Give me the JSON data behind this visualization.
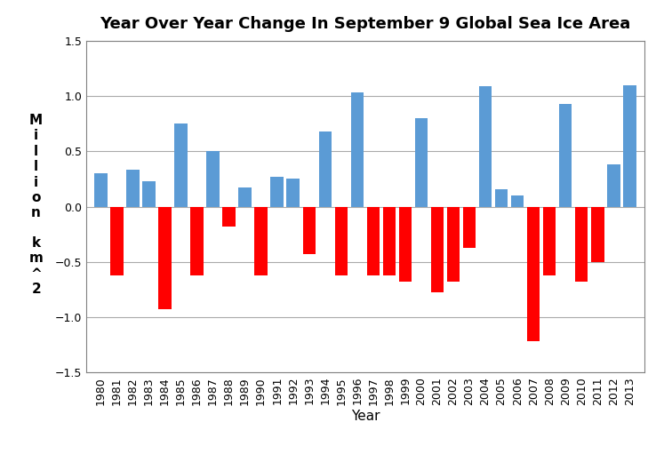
{
  "years": [
    1980,
    1981,
    1982,
    1983,
    1984,
    1985,
    1986,
    1987,
    1988,
    1989,
    1990,
    1991,
    1992,
    1993,
    1994,
    1995,
    1996,
    1997,
    1998,
    1999,
    2000,
    2001,
    2002,
    2003,
    2004,
    2005,
    2006,
    2007,
    2008,
    2009,
    2010,
    2011,
    2012,
    2013
  ],
  "values": [
    0.3,
    -0.62,
    0.33,
    0.23,
    -0.93,
    0.75,
    -0.62,
    0.5,
    -0.18,
    0.17,
    -0.62,
    0.27,
    0.25,
    -0.43,
    0.68,
    -0.62,
    1.03,
    -0.62,
    -0.62,
    -0.68,
    0.8,
    -0.78,
    -0.68,
    -0.37,
    1.09,
    0.16,
    0.1,
    -1.22,
    -0.62,
    0.93,
    -0.68,
    -0.5,
    0.38,
    1.1
  ],
  "title": "Year Over Year Change In September 9 Global Sea Ice Area",
  "xlabel": "Year",
  "ylim": [
    -1.5,
    1.5
  ],
  "yticks": [
    -1.5,
    -1.0,
    -0.5,
    0.0,
    0.5,
    1.0,
    1.5
  ],
  "positive_color": "#5b9bd5",
  "negative_color": "#ff0000",
  "title_fontsize": 13,
  "axis_label_fontsize": 11,
  "tick_fontsize": 9,
  "background_color": "#ffffff",
  "grid_color": "#aaaaaa"
}
